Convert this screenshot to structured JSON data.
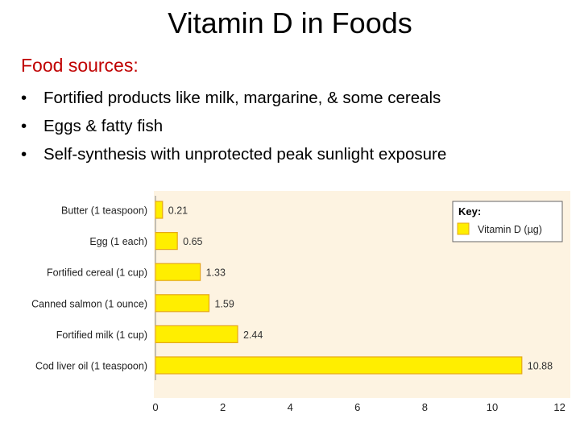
{
  "slide": {
    "title": "Vitamin D in Foods",
    "heading": "Food sources:",
    "bullets": [
      "Fortified products like milk, margarine, & some cereals",
      "Eggs & fatty fish",
      "Self-synthesis with unprotected peak sunlight exposure"
    ]
  },
  "colors": {
    "background": "#ffffff",
    "heading": "#c00000",
    "panel": "#fdf3e1",
    "bar_fill": "#ffee00",
    "bar_stroke": "#e6a817"
  },
  "chart_data": {
    "type": "bar",
    "orientation": "horizontal",
    "categories": [
      "Butter (1 teaspoon)",
      "Egg (1 each)",
      "Fortified cereal (1 cup)",
      "Canned salmon (1 ounce)",
      "Fortified milk (1 cup)",
      "Cod liver oil (1 teaspoon)"
    ],
    "series": [
      {
        "name": "Vitamin D (µg)",
        "values": [
          0.21,
          0.65,
          1.33,
          1.59,
          2.44,
          10.88
        ]
      }
    ],
    "data_labels": [
      "0.21",
      "0.65",
      "1.33",
      "1.59",
      "2.44",
      "10.88"
    ],
    "xlim": [
      0,
      12
    ],
    "xticks": [
      "0",
      "2",
      "4",
      "6",
      "8",
      "10",
      "12"
    ],
    "legend": {
      "title": "Key:",
      "entry": "Vitamin D (µg)",
      "position": "top-right"
    },
    "grid": false
  }
}
